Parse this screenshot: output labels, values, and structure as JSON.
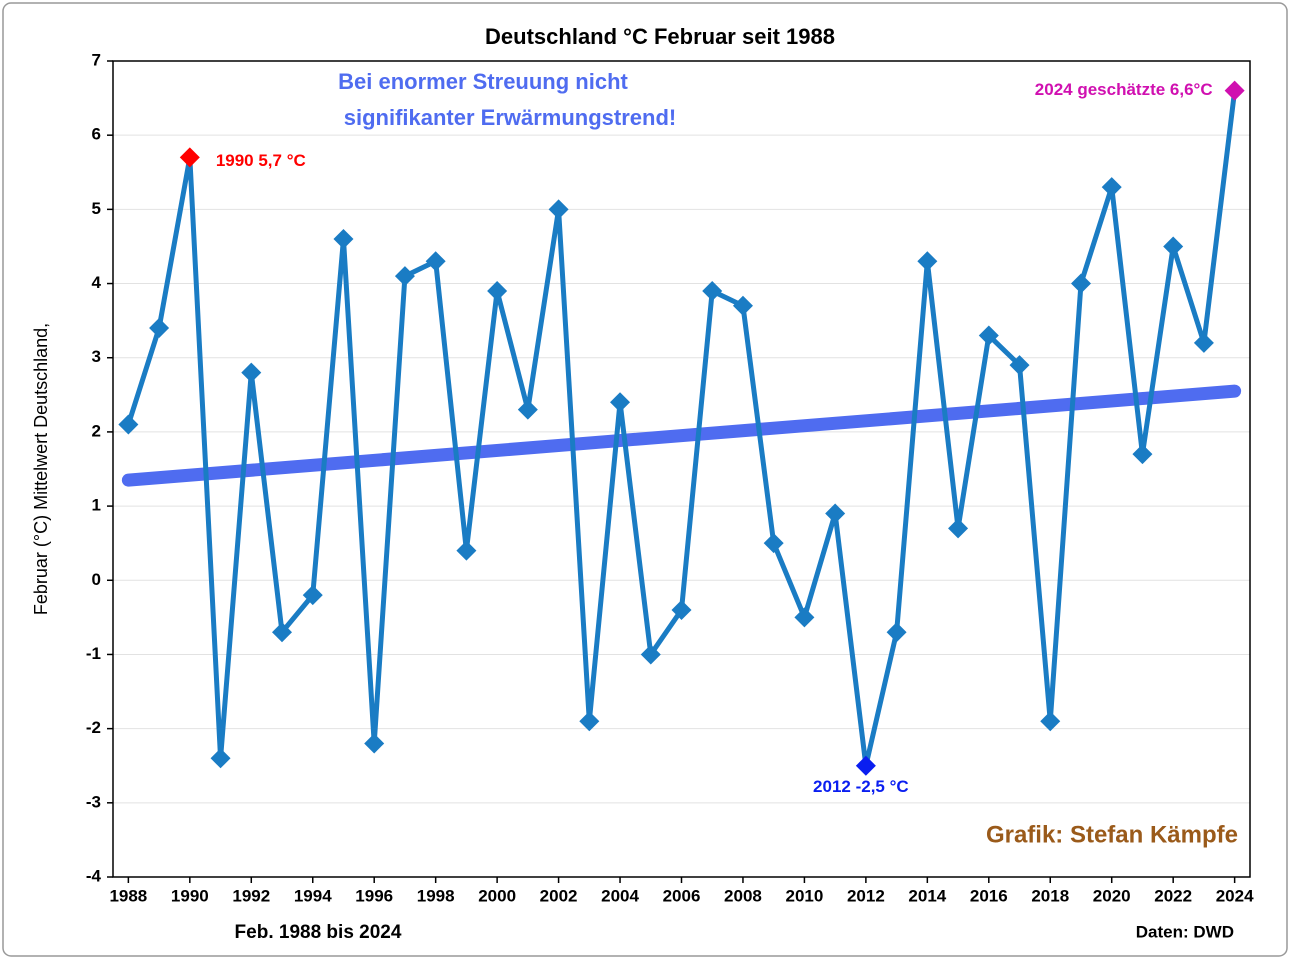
{
  "chart_data": {
    "type": "line",
    "title": "Deutschland °C Februar seit 1988",
    "y_label": "Februar (°C) Mittelwert Deutschland,",
    "x_label": "Feb. 1988 bis 2024",
    "source": "Daten: DWD",
    "credit": "Grafik: Stefan Kämpfe",
    "note": [
      "Bei enormer Streuung nicht",
      "signifikanter Erwärmungstrend!"
    ],
    "x": [
      1988,
      1989,
      1990,
      1991,
      1992,
      1993,
      1994,
      1995,
      1996,
      1997,
      1998,
      1999,
      2000,
      2001,
      2002,
      2003,
      2004,
      2005,
      2006,
      2007,
      2008,
      2009,
      2010,
      2011,
      2012,
      2013,
      2014,
      2015,
      2016,
      2017,
      2018,
      2019,
      2020,
      2021,
      2022,
      2023,
      2024
    ],
    "series": [
      {
        "color": "#1a7cc4",
        "values": [
          2.1,
          3.4,
          5.7,
          -2.4,
          2.8,
          -0.7,
          -0.2,
          4.6,
          -2.2,
          4.1,
          4.3,
          0.4,
          3.9,
          2.3,
          5.0,
          -1.9,
          2.4,
          -1.0,
          -0.4,
          3.9,
          3.7,
          0.5,
          -0.5,
          0.9,
          -2.5,
          -0.7,
          4.3,
          0.7,
          3.3,
          2.9,
          -1.9,
          4.0,
          5.3,
          1.7,
          4.5,
          3.2,
          6.6
        ]
      }
    ],
    "trend": {
      "color": "#4f6cf0",
      "x": [
        1988,
        2024
      ],
      "values": [
        1.35,
        2.55
      ]
    },
    "annotations": [
      {
        "text": "1990 5,7 °C",
        "x": 1990,
        "color": "#ff0000"
      },
      {
        "text": "2012 -2,5 °C",
        "x": 2012,
        "color": "#0a1ef0"
      },
      {
        "text": "2024 geschätzte 6,6°C",
        "x": 2024,
        "color": "#d010b0"
      }
    ],
    "xlim": [
      1987.5,
      2024.5
    ],
    "xticks": [
      1988,
      1990,
      1992,
      1994,
      1996,
      1998,
      2000,
      2002,
      2004,
      2006,
      2008,
      2010,
      2012,
      2014,
      2016,
      2018,
      2020,
      2022,
      2024
    ],
    "ylim": [
      -4,
      7
    ],
    "yticks": [
      -4,
      -3,
      -2,
      -1,
      0,
      1,
      2,
      3,
      4,
      5,
      6,
      7
    ],
    "grid": true
  }
}
